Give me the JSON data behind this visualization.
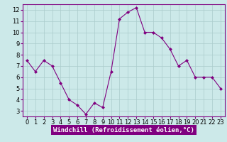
{
  "x": [
    0,
    1,
    2,
    3,
    4,
    5,
    6,
    7,
    8,
    9,
    10,
    11,
    12,
    13,
    14,
    15,
    16,
    17,
    18,
    19,
    20,
    21,
    22,
    23
  ],
  "y": [
    7.5,
    6.5,
    7.5,
    7.0,
    5.5,
    4.0,
    3.5,
    2.7,
    3.7,
    3.3,
    6.5,
    11.2,
    11.8,
    12.2,
    10.0,
    10.0,
    9.5,
    8.5,
    7.0,
    7.5,
    6.0,
    6.0,
    6.0,
    5.0
  ],
  "line_color": "#800080",
  "marker": "D",
  "marker_size": 2,
  "bg_color": "#cce9e9",
  "grid_color": "#aacccc",
  "xlabel": "Windchill (Refroidissement éolien,°C)",
  "ylim": [
    2.5,
    12.5
  ],
  "xlim": [
    -0.5,
    23.5
  ],
  "yticks": [
    3,
    4,
    5,
    6,
    7,
    8,
    9,
    10,
    11,
    12
  ],
  "xticks": [
    0,
    1,
    2,
    3,
    4,
    5,
    6,
    7,
    8,
    9,
    10,
    11,
    12,
    13,
    14,
    15,
    16,
    17,
    18,
    19,
    20,
    21,
    22,
    23
  ],
  "xlabel_fontsize": 6.5,
  "tick_fontsize": 6,
  "xlabel_bg": "#800080",
  "xlabel_color": "#ffffff",
  "spine_color": "#800080"
}
